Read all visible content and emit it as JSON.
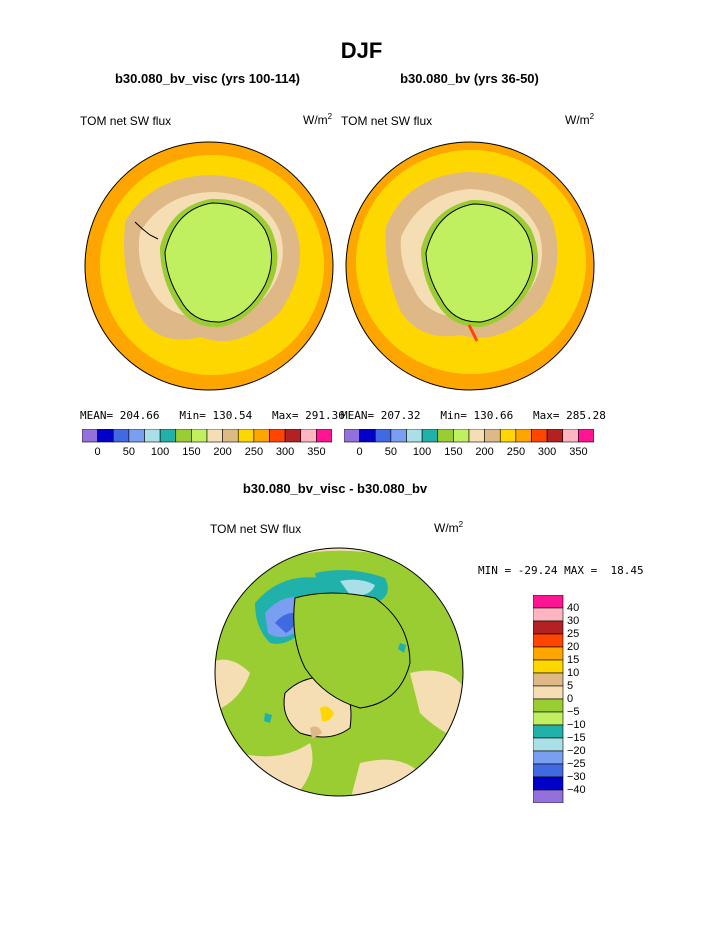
{
  "season": "DJF",
  "panels": [
    {
      "case_title": "b30.080_bv_visc (yrs 100-114)",
      "variable": "TOM net SW flux",
      "units_base": "W/m",
      "units_exp": "2",
      "stats": "MEAN= 204.66   Min= 130.54   Max= 291.36"
    },
    {
      "case_title": "b30.080_bv (yrs 36-50)",
      "variable": "TOM net SW flux",
      "units_base": "W/m",
      "units_exp": "2",
      "stats": "MEAN= 207.32   Min= 130.66   Max= 285.28"
    }
  ],
  "colorbar": {
    "colors": [
      "#9370db",
      "#0000c8",
      "#4169e1",
      "#7b9ff0",
      "#aadfe8",
      "#20b2aa",
      "#9acd32",
      "#c0f060",
      "#f5deb3",
      "#deb887",
      "#ffd700",
      "#ffa500",
      "#ff4500",
      "#b22222",
      "#ffb6c1",
      "#ff1493"
    ],
    "tick_labels": [
      "0",
      "50",
      "100",
      "150",
      "200",
      "250",
      "300",
      "350"
    ]
  },
  "difference": {
    "title": "b30.080_bv_visc - b30.080_bv",
    "variable": "TOM net SW flux",
    "units_base": "W/m",
    "units_exp": "2",
    "stats": "MIN = -29.24 MAX =  18.45",
    "legend_colors": [
      "#ff1493",
      "#ffb6c1",
      "#b22222",
      "#ff4500",
      "#ffa500",
      "#ffd700",
      "#deb887",
      "#f5deb3",
      "#9acd32",
      "#c0f060",
      "#20b2aa",
      "#aadfe8",
      "#7b9ff0",
      "#4169e1",
      "#0000c8",
      "#9370db"
    ],
    "legend_labels": [
      "40",
      "30",
      "25",
      "20",
      "15",
      "10",
      "5",
      "0",
      "−5",
      "−10",
      "−15",
      "−20",
      "−25",
      "−30",
      "−40"
    ]
  }
}
